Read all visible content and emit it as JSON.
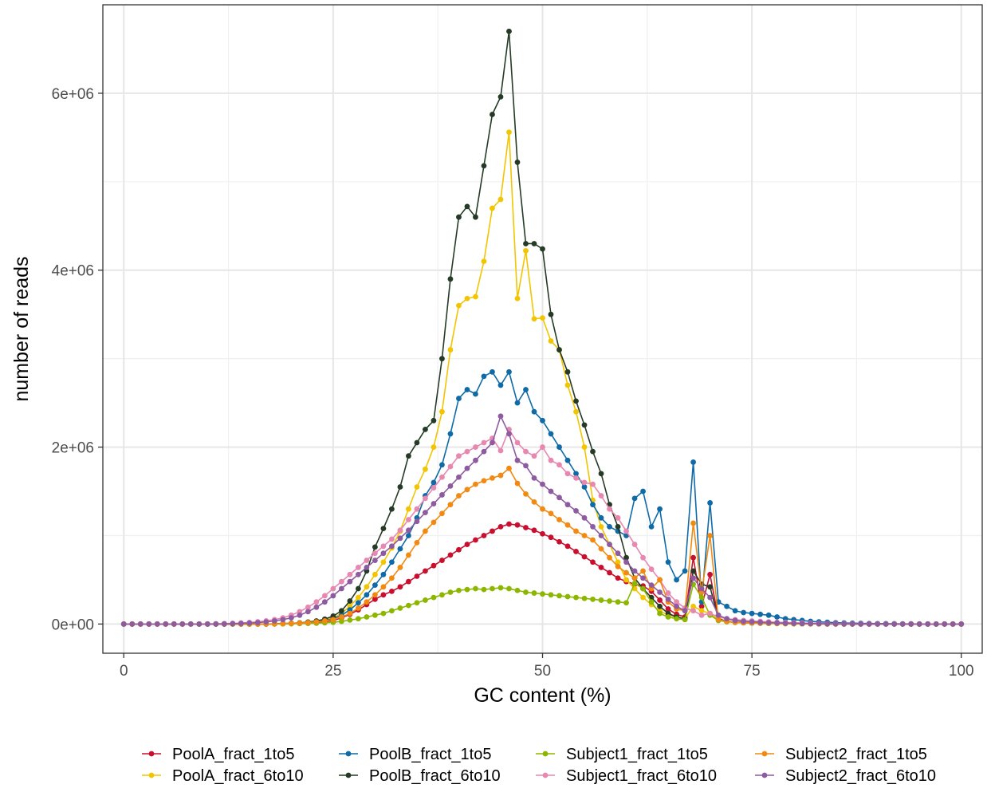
{
  "chart_data": {
    "type": "line",
    "title": "",
    "xlabel": "GC content (%)",
    "ylabel": "number of reads",
    "xlim": [
      -2.5,
      102.5
    ],
    "ylim": [
      -330000,
      7000000
    ],
    "x_ticks": [
      0,
      25,
      50,
      75,
      100
    ],
    "x_tick_labels": [
      "0",
      "25",
      "50",
      "75",
      "100"
    ],
    "y_ticks": [
      0,
      2000000,
      4000000,
      6000000
    ],
    "y_tick_labels": [
      "0e+00",
      "2e+06",
      "4e+06",
      "6e+06"
    ],
    "grid": true,
    "legend_position": "bottom",
    "markers": true,
    "x": [
      0,
      1,
      2,
      3,
      4,
      5,
      6,
      7,
      8,
      9,
      10,
      11,
      12,
      13,
      14,
      15,
      16,
      17,
      18,
      19,
      20,
      21,
      22,
      23,
      24,
      25,
      26,
      27,
      28,
      29,
      30,
      31,
      32,
      33,
      34,
      35,
      36,
      37,
      38,
      39,
      40,
      41,
      42,
      43,
      44,
      45,
      46,
      47,
      48,
      49,
      50,
      51,
      52,
      53,
      54,
      55,
      56,
      57,
      58,
      59,
      60,
      61,
      62,
      63,
      64,
      65,
      66,
      67,
      68,
      69,
      70,
      71,
      72,
      73,
      74,
      75,
      76,
      77,
      78,
      79,
      80,
      81,
      82,
      83,
      84,
      85,
      86,
      87,
      88,
      89,
      90,
      91,
      92,
      93,
      94,
      95,
      96,
      97,
      98,
      99,
      100
    ],
    "series": [
      {
        "name": "PoolA_fract_1to5",
        "color": "#C8102E",
        "values": [
          0,
          0,
          0,
          0,
          0,
          0,
          0,
          0,
          0,
          0,
          0,
          0,
          0,
          0,
          0,
          0,
          0,
          0,
          2000,
          4000,
          6000,
          9000,
          14000,
          20000,
          28000,
          40000,
          70000,
          110000,
          160000,
          220000,
          280000,
          330000,
          370000,
          420000,
          480000,
          540000,
          600000,
          660000,
          720000,
          780000,
          840000,
          900000,
          950000,
          1000000,
          1050000,
          1100000,
          1130000,
          1120000,
          1090000,
          1060000,
          1020000,
          980000,
          930000,
          880000,
          820000,
          760000,
          700000,
          640000,
          580000,
          520000,
          480000,
          450000,
          430000,
          370000,
          270000,
          170000,
          110000,
          80000,
          750000,
          200000,
          560000,
          60000,
          30000,
          20000,
          15000,
          12000,
          10000,
          8000,
          7000,
          6000,
          5000,
          4000,
          3000,
          3000,
          2000,
          2000,
          1000,
          1000,
          1000,
          1000,
          500,
          500,
          500,
          0,
          0,
          0,
          0,
          0,
          0,
          0,
          0
        ]
      },
      {
        "name": "PoolA_fract_6to10",
        "color": "#F2C500",
        "values": [
          0,
          0,
          0,
          0,
          0,
          0,
          0,
          0,
          0,
          0,
          0,
          0,
          0,
          0,
          0,
          0,
          0,
          0,
          2000,
          4000,
          7000,
          12000,
          20000,
          30000,
          45000,
          70000,
          120000,
          200000,
          300000,
          420000,
          560000,
          700000,
          860000,
          1050000,
          1300000,
          1550000,
          1750000,
          2000000,
          2400000,
          3100000,
          3600000,
          3680000,
          3700000,
          4100000,
          4700000,
          4800000,
          5560000,
          3680000,
          4220000,
          3450000,
          3460000,
          3200000,
          3100000,
          2700000,
          2400000,
          2000000,
          1400000,
          1100000,
          900000,
          700000,
          500000,
          400000,
          300000,
          220000,
          150000,
          100000,
          80000,
          60000,
          200000,
          150000,
          120000,
          50000,
          30000,
          20000,
          15000,
          12000,
          10000,
          8000,
          6000,
          5000,
          4000,
          3000,
          2000,
          2000,
          1000,
          1000,
          1000,
          1000,
          500,
          500,
          500,
          0,
          0,
          0,
          0,
          0,
          0,
          0,
          0,
          0,
          0
        ]
      },
      {
        "name": "PoolB_fract_1to5",
        "color": "#0E6BA8",
        "values": [
          0,
          0,
          0,
          0,
          0,
          0,
          0,
          0,
          0,
          0,
          0,
          0,
          0,
          0,
          0,
          0,
          0,
          0,
          2000,
          5000,
          8000,
          12000,
          18000,
          28000,
          40000,
          60000,
          100000,
          160000,
          240000,
          330000,
          440000,
          560000,
          700000,
          850000,
          1000000,
          1200000,
          1450000,
          1600000,
          1800000,
          2150000,
          2550000,
          2650000,
          2600000,
          2800000,
          2850000,
          2700000,
          2850000,
          2500000,
          2650000,
          2400000,
          2300000,
          2150000,
          2000000,
          1850000,
          1700000,
          1550000,
          1350000,
          1200000,
          1100000,
          1050000,
          1000000,
          1420000,
          1500000,
          1100000,
          1300000,
          700000,
          500000,
          600000,
          1830000,
          250000,
          1370000,
          250000,
          200000,
          150000,
          130000,
          120000,
          110000,
          100000,
          80000,
          60000,
          50000,
          40000,
          30000,
          25000,
          20000,
          15000,
          12000,
          10000,
          8000,
          6000,
          5000,
          4000,
          3000,
          2000,
          2000,
          1000,
          1000,
          0,
          0,
          0,
          0
        ]
      },
      {
        "name": "PoolB_fract_6to10",
        "color": "#253B25",
        "values": [
          0,
          0,
          0,
          0,
          0,
          0,
          0,
          0,
          0,
          0,
          0,
          0,
          0,
          0,
          0,
          0,
          0,
          0,
          2000,
          5000,
          8000,
          13000,
          22000,
          35000,
          55000,
          90000,
          150000,
          260000,
          400000,
          600000,
          870000,
          1080000,
          1300000,
          1550000,
          1900000,
          2050000,
          2200000,
          2300000,
          3000000,
          3900000,
          4600000,
          4720000,
          4600000,
          5180000,
          5760000,
          5960000,
          6700000,
          5220000,
          4300000,
          4300000,
          4240000,
          3500000,
          3100000,
          2850000,
          2520000,
          2250000,
          1950000,
          1700000,
          1350000,
          1100000,
          750000,
          520000,
          400000,
          300000,
          200000,
          120000,
          80000,
          60000,
          600000,
          450000,
          420000,
          60000,
          30000,
          20000,
          15000,
          12000,
          10000,
          8000,
          6000,
          5000,
          4000,
          3000,
          2000,
          2000,
          1000,
          1000,
          1000,
          1000,
          500,
          500,
          500,
          0,
          0,
          0,
          0,
          0,
          0,
          0,
          0,
          0,
          0
        ]
      },
      {
        "name": "Subject1_fract_1to5",
        "color": "#8DB600",
        "values": [
          0,
          0,
          0,
          0,
          0,
          0,
          0,
          0,
          0,
          0,
          0,
          0,
          0,
          0,
          0,
          0,
          0,
          0,
          1000,
          2000,
          3000,
          5000,
          7000,
          10000,
          14000,
          20000,
          30000,
          45000,
          60000,
          80000,
          100000,
          120000,
          150000,
          180000,
          210000,
          240000,
          270000,
          300000,
          330000,
          360000,
          380000,
          390000,
          400000,
          390000,
          400000,
          410000,
          400000,
          380000,
          360000,
          350000,
          340000,
          330000,
          320000,
          310000,
          300000,
          290000,
          280000,
          270000,
          260000,
          250000,
          240000,
          460000,
          400000,
          250000,
          120000,
          80000,
          60000,
          50000,
          450000,
          300000,
          100000,
          40000,
          25000,
          18000,
          14000,
          11000,
          9000,
          7000,
          6000,
          5000,
          4000,
          3000,
          2000,
          2000,
          1000,
          1000,
          1000,
          500,
          500,
          500,
          0,
          0,
          0,
          0,
          0,
          0,
          0,
          0,
          0,
          0,
          0
        ]
      },
      {
        "name": "Subject1_fract_6to10",
        "color": "#E887B0",
        "values": [
          0,
          0,
          0,
          0,
          0,
          0,
          0,
          0,
          0,
          0,
          2000,
          3000,
          5000,
          8000,
          12000,
          18000,
          26000,
          36000,
          50000,
          70000,
          100000,
          140000,
          190000,
          250000,
          320000,
          400000,
          480000,
          560000,
          640000,
          720000,
          800000,
          880000,
          960000,
          1060000,
          1180000,
          1300000,
          1420000,
          1540000,
          1660000,
          1780000,
          1900000,
          1950000,
          2000000,
          2050000,
          2100000,
          1960000,
          2200000,
          2050000,
          1950000,
          1900000,
          2000000,
          1850000,
          1800000,
          1700000,
          1650000,
          1600000,
          1580000,
          1450000,
          1300000,
          1200000,
          1050000,
          900000,
          750000,
          620000,
          500000,
          350000,
          250000,
          180000,
          150000,
          100000,
          120000,
          80000,
          60000,
          50000,
          40000,
          35000,
          30000,
          25000,
          20000,
          18000,
          15000,
          12000,
          10000,
          8000,
          6000,
          5000,
          4000,
          3000,
          2000,
          2000,
          1000,
          1000,
          1000,
          500,
          500,
          0,
          0,
          0,
          0,
          0,
          0
        ]
      },
      {
        "name": "Subject2_fract_1to5",
        "color": "#F28A11",
        "values": [
          0,
          0,
          0,
          0,
          0,
          0,
          0,
          0,
          0,
          0,
          0,
          0,
          0,
          0,
          0,
          0,
          0,
          0,
          2000,
          4000,
          7000,
          11000,
          17000,
          25000,
          36000,
          50000,
          80000,
          120000,
          180000,
          250000,
          330000,
          420000,
          520000,
          640000,
          780000,
          920000,
          1050000,
          1150000,
          1250000,
          1350000,
          1450000,
          1520000,
          1580000,
          1620000,
          1650000,
          1680000,
          1760000,
          1590000,
          1470000,
          1380000,
          1300000,
          1250000,
          1180000,
          1120000,
          1050000,
          1000000,
          950000,
          850000,
          750000,
          650000,
          580000,
          520000,
          600000,
          400000,
          500000,
          250000,
          170000,
          150000,
          1140000,
          360000,
          1000000,
          50000,
          30000,
          20000,
          15000,
          12000,
          10000,
          8000,
          6000,
          5000,
          4000,
          3000,
          2000,
          2000,
          1000,
          1000,
          1000,
          500,
          500,
          500,
          0,
          0,
          0,
          0,
          0,
          0,
          0,
          0,
          0,
          0,
          0
        ]
      },
      {
        "name": "Subject2_fract_6to10",
        "color": "#8E5BA0",
        "values": [
          0,
          0,
          0,
          0,
          0,
          0,
          0,
          0,
          0,
          0,
          0,
          1000,
          2000,
          4000,
          7000,
          11000,
          16000,
          24000,
          35000,
          50000,
          70000,
          100000,
          140000,
          190000,
          250000,
          320000,
          400000,
          480000,
          560000,
          640000,
          720000,
          800000,
          880000,
          970000,
          1060000,
          1160000,
          1260000,
          1360000,
          1460000,
          1560000,
          1660000,
          1760000,
          1850000,
          1950000,
          2050000,
          2350000,
          2150000,
          1850000,
          1790000,
          1650000,
          1580000,
          1500000,
          1430000,
          1350000,
          1280000,
          1200000,
          1100000,
          1000000,
          900000,
          800000,
          700000,
          600000,
          520000,
          440000,
          360000,
          280000,
          200000,
          150000,
          520000,
          400000,
          300000,
          100000,
          60000,
          40000,
          30000,
          25000,
          20000,
          16000,
          13000,
          10000,
          8000,
          6000,
          5000,
          4000,
          3000,
          2500,
          2000,
          1500,
          1000,
          1000,
          500,
          500,
          500,
          0,
          0,
          0,
          0,
          0,
          0,
          0,
          0
        ]
      }
    ]
  }
}
